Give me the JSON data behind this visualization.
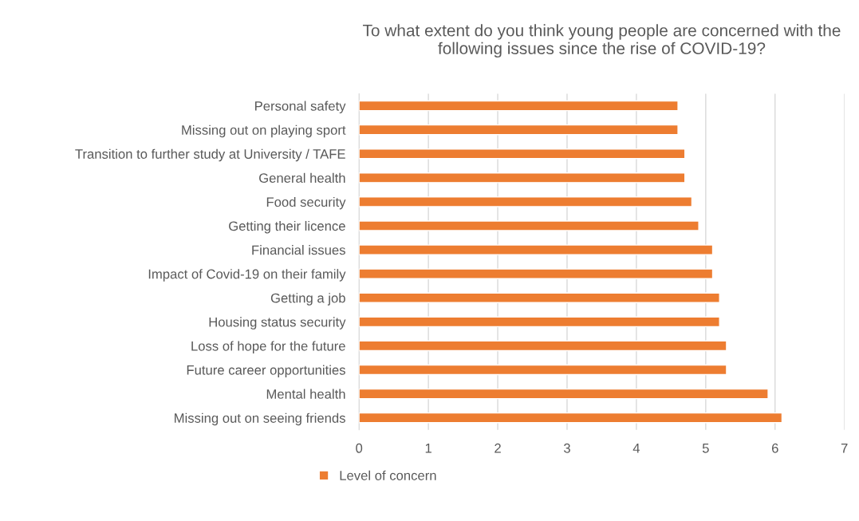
{
  "chart_data": {
    "type": "bar",
    "orientation": "horizontal",
    "title": "To what extent do you think young people are concerned with the following issues since the rise of COVID-19?",
    "categories": [
      "Personal safety",
      "Missing out on playing sport",
      "Transition to further study at University / TAFE",
      "General health",
      "Food security",
      "Getting their licence",
      "Financial issues",
      "Impact of Covid-19 on their family",
      "Getting a job",
      "Housing status security",
      "Loss of hope for the future",
      "Future career opportunities",
      "Mental health",
      "Missing out on seeing friends"
    ],
    "series": [
      {
        "name": "Level of concern",
        "color": "#ed7d31",
        "values": [
          4.6,
          4.6,
          4.7,
          4.7,
          4.8,
          4.9,
          5.1,
          5.1,
          5.2,
          5.2,
          5.3,
          5.3,
          5.9,
          6.1
        ]
      }
    ],
    "xlim": [
      0,
      7
    ],
    "xticks": [
      0,
      1,
      2,
      3,
      4,
      5,
      6,
      7
    ],
    "grid": "x",
    "legend": "bottom"
  }
}
